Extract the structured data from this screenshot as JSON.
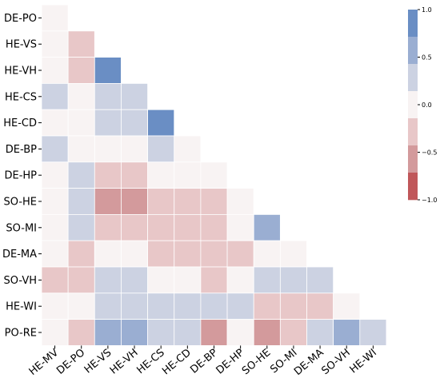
{
  "chart_data": {
    "type": "heatmap",
    "title": "",
    "xlabel": "",
    "ylabel": "",
    "row_labels": [
      "DE-PO",
      "HE-VS",
      "HE-VH",
      "HE-CS",
      "HE-CD",
      "DE-BP",
      "DE-HP",
      "SO-HE",
      "SO-MI",
      "DE-MA",
      "SO-VH",
      "HE-WI",
      "PO-RE"
    ],
    "col_labels": [
      "HE-MV",
      "DE-PO",
      "HE-VS",
      "HE-VH",
      "HE-CS",
      "HE-CD",
      "DE-BP",
      "DE-HP",
      "SO-HE",
      "SO-MI",
      "DE-MA",
      "SO-VH",
      "HE-WI"
    ],
    "mask": "lower-triangle",
    "values": [
      [
        0.0
      ],
      [
        0.0,
        -0.3
      ],
      [
        0.0,
        -0.3,
        1.0
      ],
      [
        0.3,
        0.0,
        0.3,
        0.3
      ],
      [
        0.0,
        0.0,
        0.3,
        0.3,
        1.0
      ],
      [
        0.3,
        0.0,
        0.0,
        0.0,
        0.3,
        0.0
      ],
      [
        0.0,
        0.3,
        -0.3,
        -0.3,
        0.0,
        0.0,
        0.0
      ],
      [
        0.0,
        0.3,
        -0.6,
        -0.6,
        -0.3,
        -0.3,
        -0.3,
        0.0
      ],
      [
        0.0,
        0.3,
        -0.3,
        -0.3,
        -0.3,
        -0.3,
        -0.3,
        0.0,
        0.6
      ],
      [
        0.0,
        -0.3,
        0.0,
        0.0,
        -0.3,
        -0.3,
        -0.3,
        -0.3,
        0.0,
        0.0
      ],
      [
        -0.3,
        -0.3,
        0.3,
        0.3,
        0.0,
        0.0,
        -0.3,
        0.0,
        0.3,
        0.3,
        0.3
      ],
      [
        0.0,
        0.0,
        0.3,
        0.3,
        0.3,
        0.3,
        0.3,
        0.3,
        -0.3,
        -0.3,
        -0.3,
        0.0
      ],
      [
        0.0,
        -0.3,
        0.6,
        0.6,
        0.3,
        0.3,
        -0.6,
        0.0,
        -0.6,
        -0.3,
        0.3,
        0.6,
        0.3
      ]
    ],
    "colorbar": {
      "range": [
        -1.0,
        1.0
      ],
      "ticks": [
        1.0,
        0.5,
        0.0,
        -0.5,
        -1.0
      ],
      "tick_labels": [
        "1.0",
        "0.5",
        "0.0",
        "−0.5",
        "−1.0"
      ],
      "levels": [
        {
          "value": -1.0,
          "color": "#c0575a"
        },
        {
          "value": -0.6,
          "color": "#d39a9c"
        },
        {
          "value": -0.3,
          "color": "#e8c7c8"
        },
        {
          "value": 0.0,
          "color": "#f8f3f3"
        },
        {
          "value": 0.3,
          "color": "#ccd2e2"
        },
        {
          "value": 0.6,
          "color": "#9aaed2"
        },
        {
          "value": 1.0,
          "color": "#6a8ec4"
        }
      ]
    }
  }
}
